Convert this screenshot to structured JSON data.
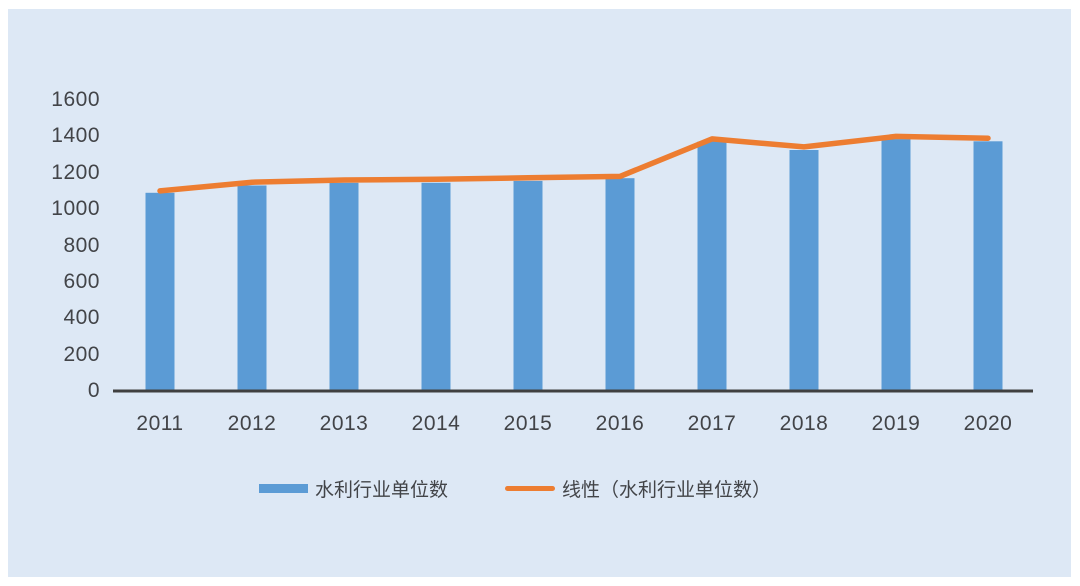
{
  "chart_data": {
    "type": "bar",
    "title": "",
    "categories": [
      "2011",
      "2012",
      "2013",
      "2014",
      "2015",
      "2016",
      "2017",
      "2018",
      "2019",
      "2020"
    ],
    "series": [
      {
        "name": "水利行业单位数",
        "type": "bar",
        "color": "#5B9BD5",
        "values": [
          1090,
          1130,
          1145,
          1145,
          1155,
          1170,
          1372,
          1325,
          1385,
          1373
        ]
      },
      {
        "name": "线性（水利行业单位数）",
        "type": "line",
        "color": "#ED7D31",
        "values": [
          1100,
          1148,
          1160,
          1164,
          1172,
          1180,
          1386,
          1342,
          1400,
          1390
        ]
      }
    ],
    "xlabel": "",
    "ylabel": "",
    "ylim": [
      0,
      1600
    ],
    "ytick_step": 200,
    "yticks": [
      "0",
      "200",
      "400",
      "600",
      "800",
      "1000",
      "1200",
      "1400",
      "1600"
    ],
    "grid": false,
    "legend_position": "bottom",
    "colors": {
      "panel_background": "#DDE8F5",
      "page_background": "#FFFFFF",
      "axis_line": "#404040",
      "tick_text": "#424448"
    }
  }
}
